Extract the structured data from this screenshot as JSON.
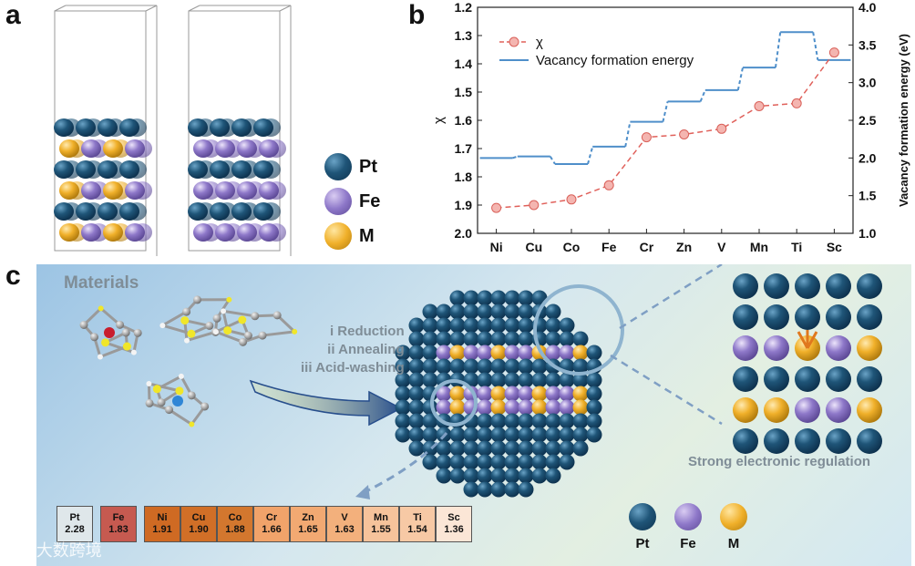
{
  "panel_labels": {
    "a": "a",
    "b": "b",
    "c": "c"
  },
  "panel_a": {
    "legend": [
      {
        "label": "Pt",
        "color": "#1f5578"
      },
      {
        "label": "Fe",
        "color": "#8e78c9"
      },
      {
        "label": "M",
        "color": "#f0b02a"
      }
    ],
    "left_rows": [
      "Pt",
      "M-Fe",
      "Pt",
      "M-Fe",
      "Pt",
      "M-Fe"
    ],
    "right_rows": [
      "Pt",
      "Fe",
      "Pt",
      "Fe",
      "Pt",
      "Fe"
    ]
  },
  "panel_c": {
    "materials_label": "Materials",
    "steps": [
      "i Reduction",
      "ii Annealing",
      "iii Acid-washing"
    ],
    "regulation_label": "Strong electronic regulation",
    "legend": [
      {
        "label": "Pt",
        "color": "#1f5578"
      },
      {
        "label": "Fe",
        "color": "#8e78c9"
      },
      {
        "label": "M",
        "color": "#f0b02a"
      }
    ],
    "table": [
      {
        "symbol": "Pt",
        "value": "2.28",
        "color": "#dfe7ea"
      },
      {
        "symbol": "Fe",
        "value": "1.83",
        "color": "#c65a50"
      },
      {
        "symbol": "Ni",
        "value": "1.91",
        "color": "#cf6a23"
      },
      {
        "symbol": "Cu",
        "value": "1.90",
        "color": "#d16f27"
      },
      {
        "symbol": "Co",
        "value": "1.88",
        "color": "#d3772e"
      },
      {
        "symbol": "Cr",
        "value": "1.66",
        "color": "#f1a36a"
      },
      {
        "symbol": "Zn",
        "value": "1.65",
        "color": "#f2a972"
      },
      {
        "symbol": "V",
        "value": "1.63",
        "color": "#f3b07c"
      },
      {
        "symbol": "Mn",
        "value": "1.55",
        "color": "#f6c39b"
      },
      {
        "symbol": "Ti",
        "value": "1.54",
        "color": "#f7c9a5"
      },
      {
        "symbol": "Sc",
        "value": "1.36",
        "color": "#fbe6d6"
      }
    ]
  },
  "watermark": "大数跨境",
  "chart_data": {
    "type": "line",
    "categories": [
      "Ni",
      "Cu",
      "Co",
      "Fe",
      "Cr",
      "Zn",
      "V",
      "Mn",
      "Ti",
      "Sc"
    ],
    "series": [
      {
        "name": "χ",
        "axis": "left",
        "style": "dashed-markers",
        "color": "#e0605a",
        "values": [
          1.91,
          1.9,
          1.88,
          1.83,
          1.66,
          1.65,
          1.63,
          1.55,
          1.54,
          1.36
        ]
      },
      {
        "name": "Vacancy formation energy",
        "axis": "right",
        "style": "step",
        "color": "#4f8fca",
        "values": [
          2.0,
          2.02,
          1.92,
          2.15,
          2.48,
          2.75,
          2.9,
          3.2,
          3.67,
          3.3
        ]
      }
    ],
    "ylabel_left": "χ",
    "ylabel_right": "Vacancy formation energy (eV)",
    "ylim_left": [
      2.0,
      1.2
    ],
    "ylim_right": [
      1.0,
      4.0
    ],
    "yticks_left": [
      "1.2",
      "1.3",
      "1.4",
      "1.5",
      "1.6",
      "1.7",
      "1.8",
      "1.9",
      "2.0"
    ],
    "yticks_right": [
      "1.0",
      "1.5",
      "2.0",
      "2.5",
      "3.0",
      "3.5",
      "4.0"
    ],
    "legend_position": "top-left"
  }
}
